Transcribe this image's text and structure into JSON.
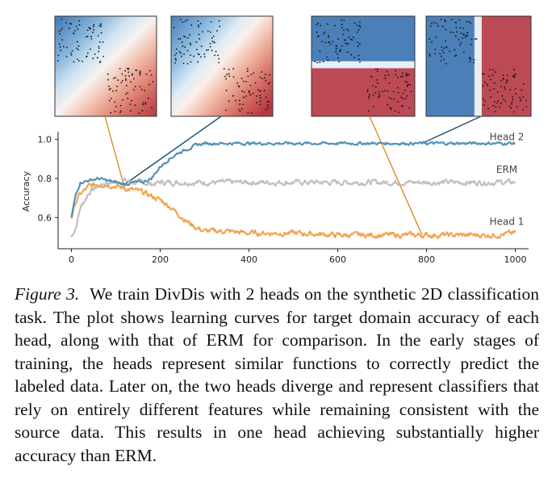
{
  "figure": {
    "label": "Figure 3.",
    "caption": "We train DivDis with 2 heads on the synthetic 2D classification task. The plot shows learning curves for target domain accuracy of each head, along with that of ERM for comparison. In the early stages of training, the heads represent similar functions to correctly predict the labeled data. Later on, the two heads diverge and represent classifiers that rely on entirely different features while remaining consistent with the source data. This results in one head achieving substantially higher accuracy than ERM."
  },
  "insets": [
    {
      "name": "head-1-early",
      "style": "diagonal-gradient",
      "step": 120
    },
    {
      "name": "head-2-early",
      "style": "diagonal-gradient",
      "step": 120
    },
    {
      "name": "head-1-late",
      "style": "horizontal-split",
      "step": 790
    },
    {
      "name": "head-2-late",
      "style": "vertical-split",
      "step": 790
    }
  ],
  "colors": {
    "head1": "#f0a048",
    "head2": "#4a8db5",
    "erm": "#bdbdbd",
    "connector_orange": "#e08a25",
    "connector_blue": "#1b4f72",
    "blue_region": "#4a7fb8",
    "red_region": "#bb4a55"
  },
  "chart_data": {
    "type": "line",
    "xlabel": "",
    "ylabel": "Accuracy",
    "xlim": [
      -30,
      1030
    ],
    "ylim": [
      0.44,
      1.04
    ],
    "xticks": [
      0,
      200,
      400,
      600,
      800,
      1000
    ],
    "yticks": [
      0.6,
      0.8,
      1.0
    ],
    "xtick_labels": [
      "0",
      "200",
      "400",
      "600",
      "800",
      "1000"
    ],
    "ytick_labels": [
      "0.6",
      "0.8",
      "1.0"
    ],
    "grid": false,
    "legend": "inline right labels",
    "series": [
      {
        "name": "Head 2",
        "color": "#4a8db5",
        "x": [
          0,
          10,
          20,
          40,
          60,
          80,
          100,
          120,
          140,
          160,
          180,
          200,
          220,
          240,
          260,
          280,
          300,
          350,
          400,
          500,
          600,
          700,
          800,
          900,
          1000
        ],
        "y": [
          0.6,
          0.72,
          0.78,
          0.79,
          0.8,
          0.79,
          0.78,
          0.77,
          0.78,
          0.78,
          0.8,
          0.86,
          0.9,
          0.93,
          0.95,
          0.97,
          0.98,
          0.98,
          0.98,
          0.98,
          0.98,
          0.98,
          0.98,
          0.98,
          0.98
        ]
      },
      {
        "name": "ERM",
        "color": "#bdbdbd",
        "x": [
          0,
          10,
          20,
          40,
          60,
          80,
          100,
          120,
          140,
          160,
          180,
          200,
          300,
          400,
          500,
          600,
          700,
          800,
          900,
          1000
        ],
        "y": [
          0.5,
          0.55,
          0.65,
          0.73,
          0.76,
          0.78,
          0.78,
          0.79,
          0.78,
          0.78,
          0.77,
          0.78,
          0.78,
          0.78,
          0.78,
          0.78,
          0.78,
          0.78,
          0.78,
          0.78
        ]
      },
      {
        "name": "Head 1",
        "color": "#f0a048",
        "x": [
          0,
          10,
          20,
          40,
          60,
          80,
          100,
          120,
          140,
          160,
          180,
          200,
          220,
          240,
          260,
          280,
          300,
          350,
          400,
          500,
          600,
          700,
          800,
          900,
          950,
          1000
        ],
        "y": [
          0.6,
          0.68,
          0.72,
          0.76,
          0.77,
          0.77,
          0.76,
          0.75,
          0.74,
          0.73,
          0.71,
          0.69,
          0.66,
          0.62,
          0.58,
          0.55,
          0.53,
          0.53,
          0.52,
          0.52,
          0.51,
          0.51,
          0.51,
          0.51,
          0.51,
          0.52
        ]
      }
    ]
  }
}
